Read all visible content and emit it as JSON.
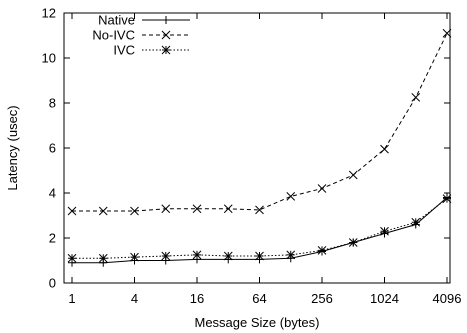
{
  "chart_data": {
    "type": "line",
    "title": "",
    "xlabel": "Message Size (bytes)",
    "ylabel": "Latency (usec)",
    "x_scale": "log2",
    "xlim": [
      1,
      4096
    ],
    "ylim": [
      0,
      12
    ],
    "x": [
      1,
      2,
      4,
      8,
      16,
      32,
      64,
      128,
      256,
      512,
      1024,
      2048,
      4096
    ],
    "x_ticks": [
      1,
      4,
      16,
      64,
      256,
      1024,
      4096
    ],
    "x_tick_labels": [
      "1",
      "4",
      "16",
      "64",
      "256",
      "1024",
      "4096"
    ],
    "y_ticks": [
      0,
      2,
      4,
      6,
      8,
      10,
      12
    ],
    "y_tick_labels": [
      "0",
      "2",
      "4",
      "6",
      "8",
      "10",
      "12"
    ],
    "grid": false,
    "legend_position": "top-left",
    "series": [
      {
        "name": "Native",
        "marker": "plus",
        "line_style": "solid",
        "values": [
          0.9,
          0.9,
          1.0,
          1.0,
          1.05,
          1.05,
          1.05,
          1.1,
          1.4,
          1.8,
          2.2,
          2.6,
          3.8
        ]
      },
      {
        "name": "No-IVC",
        "marker": "cross",
        "line_style": "dashed",
        "values": [
          3.2,
          3.2,
          3.2,
          3.3,
          3.3,
          3.3,
          3.25,
          3.85,
          4.2,
          4.8,
          5.95,
          8.25,
          11.1
        ]
      },
      {
        "name": "IVC",
        "marker": "asterisk",
        "line_style": "dotted",
        "values": [
          1.1,
          1.1,
          1.15,
          1.2,
          1.25,
          1.2,
          1.2,
          1.25,
          1.45,
          1.8,
          2.3,
          2.7,
          3.75
        ]
      }
    ]
  }
}
